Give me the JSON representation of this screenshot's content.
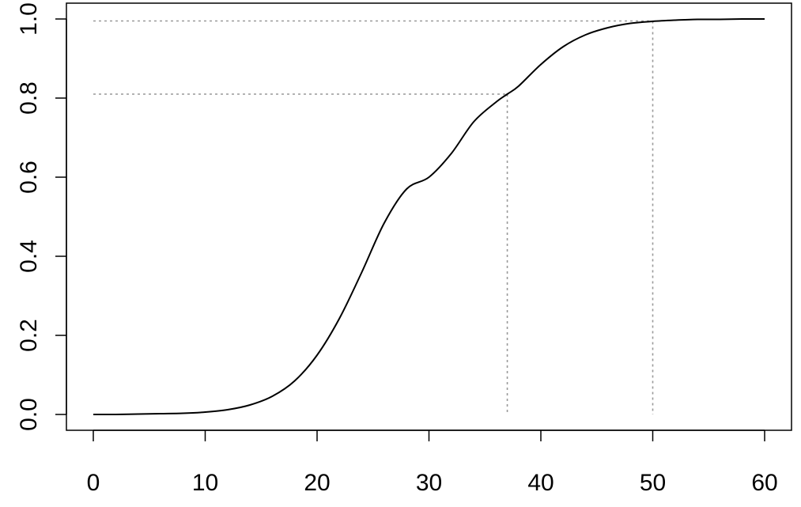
{
  "chart_data": {
    "type": "line",
    "title": "",
    "xlabel": "",
    "ylabel": "",
    "xlim": [
      0,
      60
    ],
    "ylim": [
      0,
      1
    ],
    "x_ticks": [
      0,
      10,
      20,
      30,
      40,
      50,
      60
    ],
    "x_tick_labels": [
      "0",
      "10",
      "20",
      "30",
      "40",
      "50",
      "60"
    ],
    "y_ticks": [
      0,
      0.2,
      0.4,
      0.6,
      0.8,
      1.0
    ],
    "y_tick_labels": [
      "0.0",
      "0.2",
      "0.4",
      "0.6",
      "0.8",
      "1.0"
    ],
    "grid": false,
    "legend": "none",
    "series": [
      {
        "color": "#000000",
        "x": [
          0,
          2,
          4,
          6,
          8,
          10,
          12,
          14,
          16,
          18,
          20,
          22,
          24,
          26,
          28,
          30,
          32,
          34,
          36,
          37,
          38,
          40,
          42,
          44,
          46,
          48,
          50,
          52,
          54,
          56,
          58,
          60
        ],
        "y": [
          0.0,
          0.0,
          0.001,
          0.002,
          0.003,
          0.006,
          0.012,
          0.024,
          0.046,
          0.085,
          0.15,
          0.243,
          0.36,
          0.484,
          0.57,
          0.6,
          0.66,
          0.74,
          0.79,
          0.81,
          0.83,
          0.885,
          0.93,
          0.96,
          0.978,
          0.989,
          0.994,
          0.997,
          0.999,
          0.999,
          1.0,
          1.0
        ]
      }
    ],
    "reference_lines": [
      {
        "x": 37,
        "y": 0.81,
        "color": "#999999",
        "style": "dotted"
      },
      {
        "x": 50,
        "y": 0.995,
        "color": "#999999",
        "style": "dotted"
      }
    ]
  }
}
